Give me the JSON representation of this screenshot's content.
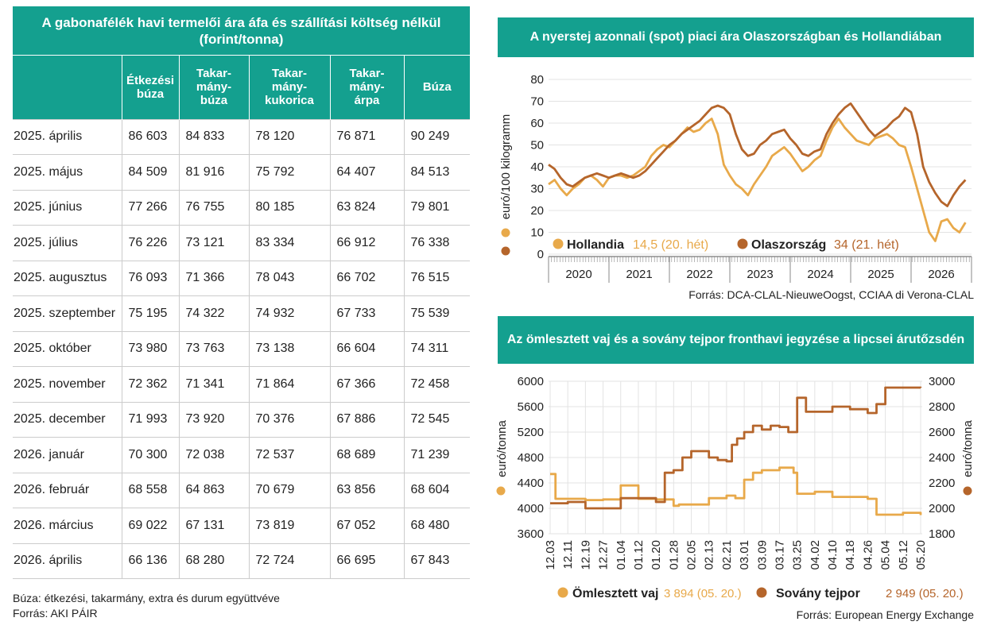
{
  "table": {
    "title": "A gabonafélék havi termelői ára áfa és szállítási költség nélkül (forint/tonna)",
    "headers": [
      "",
      "Étkezési búza",
      "Takar-mány-búza",
      "Takar-mány-kukorica",
      "Takar-mány-árpa",
      "Búza"
    ],
    "header_lines": [
      [],
      [
        "Étkezési",
        "búza"
      ],
      [
        "Takar-",
        "mány-",
        "búza"
      ],
      [
        "Takar-",
        "mány-",
        "kukorica"
      ],
      [
        "Takar-",
        "mány-",
        "árpa"
      ],
      [
        "Búza"
      ]
    ],
    "rows": [
      [
        "2025. április",
        "86 603",
        "84 833",
        "78 120",
        "76 871",
        "90 249"
      ],
      [
        "2025. május",
        "84 509",
        "81 916",
        "75 792",
        "64 407",
        "84 513"
      ],
      [
        "2025. június",
        "77 266",
        "76 755",
        "80 185",
        "63 824",
        "79 801"
      ],
      [
        "2025. július",
        "76 226",
        "73 121",
        "83 334",
        "66 912",
        "76 338"
      ],
      [
        "2025. augusztus",
        "76 093",
        "71 366",
        "78 043",
        "66 702",
        "76 515"
      ],
      [
        "2025. szeptember",
        "75 195",
        "74 322",
        "74 932",
        "67 733",
        "75 539"
      ],
      [
        "2025. október",
        "73 980",
        "73 763",
        "73 138",
        "66 604",
        "74 311"
      ],
      [
        "2025. november",
        "72 362",
        "71 341",
        "71 864",
        "67 366",
        "72 458"
      ],
      [
        "2025. december",
        "71 993",
        "73 920",
        "70 376",
        "67 886",
        "72 545"
      ],
      [
        "2026. január",
        "70 300",
        "72 038",
        "72 537",
        "68 689",
        "71 239"
      ],
      [
        "2026. február",
        "68 558",
        "64 863",
        "70 679",
        "63 856",
        "68 604"
      ],
      [
        "2026. március",
        "69 022",
        "67 131",
        "73 819",
        "67 052",
        "68 480"
      ],
      [
        "2026. április",
        "66 136",
        "68 280",
        "72 724",
        "66 695",
        "67 843"
      ]
    ],
    "note": "Búza: étkezési, takarmány, extra és durum együttvéve",
    "source": "Forrás: AKI PÁIR"
  },
  "colors": {
    "teal": "#14a08f",
    "light": "#e8a94a",
    "dark": "#b5652b"
  },
  "chart_data": [
    {
      "type": "line",
      "title": "A nyerstej azonnali (spot) piaci ára Olaszországban és Hollandiában",
      "ylabel": "euró/100 kilogramm",
      "ylim": [
        0,
        80
      ],
      "yticks": [
        0,
        10,
        20,
        30,
        40,
        50,
        60,
        70,
        80
      ],
      "xlim": [
        2019.5,
        2026.5
      ],
      "x_tick_labels": [
        "2020",
        "2021",
        "2022",
        "2023",
        "2024",
        "2025",
        "2026"
      ],
      "legend": [
        {
          "name": "Hollandia",
          "note": "14,5 (20. hét)"
        },
        {
          "name": "Olaszország",
          "note": "34 (21. hét)"
        }
      ],
      "source": "Forrás: DCA-CLAL-NieuweOogst, CCIAA di Verona-CLAL",
      "series": [
        {
          "name": "Hollandia",
          "x": [
            2019.5,
            2019.6,
            2019.7,
            2019.8,
            2019.9,
            2020.0,
            2020.1,
            2020.2,
            2020.3,
            2020.4,
            2020.5,
            2020.6,
            2020.7,
            2020.8,
            2020.9,
            2021.0,
            2021.1,
            2021.2,
            2021.3,
            2021.4,
            2021.5,
            2021.6,
            2021.7,
            2021.8,
            2021.9,
            2022.0,
            2022.1,
            2022.2,
            2022.3,
            2022.4,
            2022.5,
            2022.6,
            2022.7,
            2022.8,
            2022.9,
            2023.0,
            2023.1,
            2023.2,
            2023.3,
            2023.4,
            2023.5,
            2023.6,
            2023.7,
            2023.8,
            2023.9,
            2024.0,
            2024.1,
            2024.2,
            2024.3,
            2024.4,
            2024.5,
            2024.6,
            2024.7,
            2024.8,
            2024.9,
            2025.0,
            2025.1,
            2025.2,
            2025.3,
            2025.4,
            2025.5,
            2025.6,
            2025.7,
            2025.8,
            2025.9,
            2026.0,
            2026.1,
            2026.2,
            2026.3,
            2026.4
          ],
          "values": [
            32,
            34,
            30,
            27,
            30,
            32,
            35,
            36,
            34,
            31,
            35,
            36,
            36,
            35,
            36,
            38,
            40,
            45,
            48,
            50,
            49,
            52,
            55,
            58,
            56,
            57,
            60,
            62,
            55,
            41,
            36,
            32,
            30,
            27,
            32,
            36,
            40,
            45,
            47,
            49,
            46,
            42,
            38,
            40,
            43,
            45,
            52,
            58,
            62,
            58,
            55,
            52,
            51,
            50,
            53,
            54,
            55,
            53,
            50,
            49,
            40,
            30,
            20,
            10,
            6,
            15,
            16,
            12,
            10,
            14.5
          ]
        },
        {
          "name": "Olaszország",
          "x": [
            2019.5,
            2019.6,
            2019.7,
            2019.8,
            2019.9,
            2020.0,
            2020.1,
            2020.2,
            2020.3,
            2020.4,
            2020.5,
            2020.6,
            2020.7,
            2020.8,
            2020.9,
            2021.0,
            2021.1,
            2021.2,
            2021.3,
            2021.4,
            2021.5,
            2021.6,
            2021.7,
            2021.8,
            2021.9,
            2022.0,
            2022.1,
            2022.2,
            2022.3,
            2022.4,
            2022.5,
            2022.6,
            2022.7,
            2022.8,
            2022.9,
            2023.0,
            2023.1,
            2023.2,
            2023.3,
            2023.4,
            2023.5,
            2023.6,
            2023.7,
            2023.8,
            2023.9,
            2024.0,
            2024.1,
            2024.2,
            2024.3,
            2024.4,
            2024.5,
            2024.6,
            2024.7,
            2024.8,
            2024.9,
            2025.0,
            2025.1,
            2025.2,
            2025.3,
            2025.4,
            2025.5,
            2025.6,
            2025.7,
            2025.8,
            2025.9,
            2026.0,
            2026.1,
            2026.2,
            2026.3,
            2026.4
          ],
          "values": [
            41,
            39,
            35,
            32,
            31,
            33,
            35,
            36,
            37,
            36,
            35,
            36,
            37,
            36,
            35,
            36,
            38,
            41,
            44,
            47,
            50,
            52,
            55,
            57,
            59,
            61,
            64,
            67,
            68,
            67,
            64,
            55,
            48,
            45,
            46,
            50,
            52,
            55,
            56,
            57,
            53,
            50,
            46,
            45,
            47,
            48,
            55,
            60,
            64,
            67,
            69,
            65,
            61,
            57,
            54,
            56,
            58,
            61,
            63,
            67,
            65,
            55,
            40,
            33,
            28,
            24,
            22,
            27,
            31,
            34
          ]
        }
      ]
    },
    {
      "type": "line",
      "title": "Az ömlesztett vaj és a sovány tejpor fronthavi jegyzése a lipcsei árutőzsdén",
      "ylabel": "euró/tonna",
      "ylim": [
        3600,
        6000
      ],
      "yticks": [
        3600,
        4000,
        4400,
        4800,
        5200,
        5600,
        6000
      ],
      "y2label": "euró/tonna",
      "y2lim": [
        1800,
        3000
      ],
      "y2ticks": [
        1800,
        2000,
        2200,
        2400,
        2600,
        2800,
        3000
      ],
      "x_tick_labels": [
        "12.03",
        "12.11",
        "12.19",
        "12.27",
        "01.04",
        "01.12",
        "01.20",
        "01.28",
        "02.05",
        "02.13",
        "02.21",
        "03.01",
        "03.09",
        "03.17",
        "03.25",
        "04.02",
        "04.10",
        "04.18",
        "04.26",
        "05.04",
        "05.12",
        "05.20"
      ],
      "legend": [
        {
          "name": "Ömlesztett vaj",
          "note": "3 894 (05. 20.)"
        },
        {
          "name": "Sovány tejpor",
          "note": "2 949 (05. 20.)"
        }
      ],
      "source": "Forrás: European Energy Exchange",
      "series": [
        {
          "name": "Ömlesztett vaj",
          "axis": "left",
          "x_index": [
            0,
            0.3,
            1,
            2,
            3,
            4,
            5,
            6,
            7,
            7.3,
            8,
            9,
            10,
            10.5,
            11,
            11.5,
            12,
            13,
            13.8,
            14,
            15,
            16,
            17,
            18,
            18.5,
            19,
            20,
            21
          ],
          "values": [
            4540,
            4150,
            4150,
            4130,
            4140,
            4360,
            4150,
            4140,
            4040,
            4060,
            4060,
            4160,
            4200,
            4160,
            4450,
            4560,
            4600,
            4640,
            4560,
            4230,
            4260,
            4180,
            4180,
            4150,
            3900,
            3900,
            3930,
            3894
          ]
        },
        {
          "name": "Sovány tejpor",
          "axis": "right",
          "x_index": [
            0,
            1,
            2,
            3,
            4,
            5,
            6,
            6.5,
            7,
            7.5,
            8,
            8.5,
            9,
            9.5,
            10,
            10.3,
            10.6,
            11,
            11.5,
            12,
            12.5,
            13,
            13.5,
            14,
            14.5,
            15,
            16,
            17,
            18,
            18.5,
            19,
            20,
            21
          ],
          "values": [
            2040,
            2050,
            2000,
            2000,
            2080,
            2080,
            2050,
            2280,
            2300,
            2400,
            2450,
            2450,
            2400,
            2380,
            2370,
            2500,
            2550,
            2600,
            2650,
            2620,
            2650,
            2640,
            2600,
            2870,
            2760,
            2760,
            2800,
            2780,
            2750,
            2820,
            2950,
            2950,
            2949
          ]
        }
      ]
    }
  ]
}
